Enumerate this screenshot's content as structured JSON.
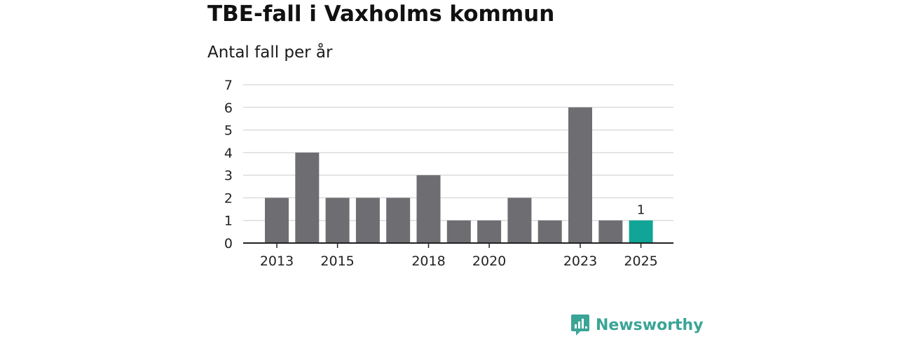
{
  "header": {
    "title": "TBE-fall i Vaxholms kommun",
    "subtitle": "Antal fall per år"
  },
  "brand": {
    "name": "Newsworthy",
    "icon": "newsworthy-logo-icon",
    "color": "#3aa597"
  },
  "chart_data": {
    "type": "bar",
    "title": "TBE-fall i Vaxholms kommun",
    "subtitle": "Antal fall per år",
    "xlabel": "",
    "ylabel": "",
    "categories": [
      "2013",
      "2014",
      "2015",
      "2016",
      "2017",
      "2018",
      "2019",
      "2020",
      "2021",
      "2022",
      "2023",
      "2024",
      "2025"
    ],
    "values": [
      2,
      4,
      2,
      2,
      2,
      3,
      1,
      1,
      2,
      1,
      6,
      1,
      1
    ],
    "x_tick_labels": [
      "2013",
      "2015",
      "2018",
      "2020",
      "2023",
      "2025"
    ],
    "y_ticks": [
      "0",
      "1",
      "2",
      "3",
      "4",
      "5",
      "6",
      "7"
    ],
    "ylim": [
      0,
      7
    ],
    "grid": true,
    "bar_color": "#6e6d72",
    "highlight_color": "#10a597",
    "highlight_category": "2025",
    "data_labels": [
      {
        "category": "2025",
        "text": "1"
      }
    ]
  }
}
